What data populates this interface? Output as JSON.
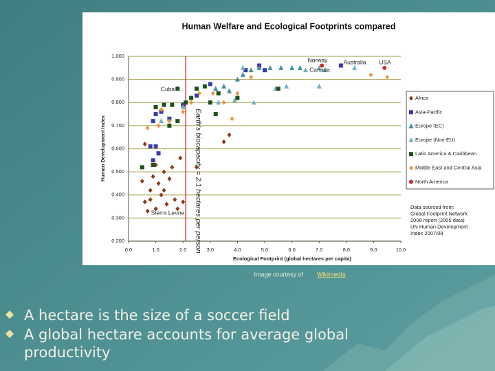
{
  "chart_data": {
    "type": "scatter",
    "title": "Human Welfare and Ecological Footprints compared",
    "x_label": "Ecological Footprint (global hectares per capita)",
    "y_label": "Human Development Index",
    "xlim": [
      0,
      10
    ],
    "ylim": [
      0.2,
      1.0
    ],
    "xticks": [
      {
        "value": 0,
        "label": "0.0"
      },
      {
        "value": 1,
        "label": "1.0"
      },
      {
        "value": 2,
        "label": "2.0"
      },
      {
        "value": 3,
        "label": "3.0"
      },
      {
        "value": 4,
        "label": "4.0"
      },
      {
        "value": 5,
        "label": "5.0"
      },
      {
        "value": 6,
        "label": "6.0"
      },
      {
        "value": 7,
        "label": "7.0"
      },
      {
        "value": 8,
        "label": "8.0"
      },
      {
        "value": 9,
        "label": "9.0"
      },
      {
        "value": 10,
        "label": "10.0"
      }
    ],
    "yticks": [
      {
        "value": 0.2,
        "label": "0.200"
      },
      {
        "value": 0.3,
        "label": "0.300"
      },
      {
        "value": 0.4,
        "label": "0.400"
      },
      {
        "value": 0.5,
        "label": "0.500"
      },
      {
        "value": 0.6,
        "label": "0.600"
      },
      {
        "value": 0.7,
        "label": "0.700"
      },
      {
        "value": 0.8,
        "label": "0.800"
      },
      {
        "value": 0.9,
        "label": "0.900"
      },
      {
        "value": 1.0,
        "label": "1.000"
      }
    ],
    "grid": true,
    "reference_line": 2.1,
    "reference_label": "Earth's biocapacity = 2.1 hectares per person",
    "annotations": [
      "Cuba",
      "Norway",
      "Canada",
      "Australia",
      "USA",
      "Sierra Leone"
    ],
    "source": [
      "Data sourced from:",
      "Global Footprint Network",
      "2008 report (2005 data)",
      "UN Human Development",
      "Index 2007/08"
    ],
    "legend": "right",
    "series": [
      {
        "name": "Africa",
        "color": "#8b3a1a",
        "marker": "diamond",
        "x": [
          0.5,
          0.6,
          0.7,
          0.8,
          0.9,
          1.0,
          1.1,
          1.2,
          1.3,
          1.4,
          1.5,
          1.6,
          1.7,
          1.8,
          1.9,
          2.0,
          0.6,
          1.1,
          1.3,
          0.8,
          3.5,
          3.7,
          2.5,
          1.0
        ],
        "values": [
          0.46,
          0.37,
          0.33,
          0.42,
          0.48,
          0.53,
          0.45,
          0.4,
          0.5,
          0.36,
          0.47,
          0.52,
          0.38,
          0.34,
          0.56,
          0.37,
          0.62,
          0.58,
          0.42,
          0.38,
          0.63,
          0.66,
          0.52,
          0.34
        ]
      },
      {
        "name": "Asia-Pacific",
        "color": "#3b3ba8",
        "marker": "square",
        "x": [
          0.8,
          0.9,
          1.0,
          1.1,
          1.2,
          0.9,
          1.5,
          2.0,
          2.5,
          3.0,
          4.3,
          5.0,
          7.8,
          4.8,
          1.0
        ],
        "values": [
          0.61,
          0.72,
          0.75,
          0.58,
          0.76,
          0.55,
          0.73,
          0.79,
          0.83,
          0.88,
          0.94,
          0.94,
          0.96,
          0.96,
          0.61
        ]
      },
      {
        "name": "Europe (EC)",
        "color": "#3f8f9e",
        "marker": "triangle",
        "x": [
          3.2,
          3.5,
          4.0,
          4.5,
          4.8,
          5.2,
          5.6,
          6.0,
          6.3,
          4.2,
          3.7
        ],
        "values": [
          0.86,
          0.87,
          0.9,
          0.94,
          0.95,
          0.95,
          0.95,
          0.95,
          0.95,
          0.92,
          0.85
        ]
      },
      {
        "name": "Europe (Non-EU)",
        "color": "#6fb3c0",
        "marker": "triangle",
        "x": [
          1.2,
          2.0,
          3.3,
          3.9,
          4.6,
          5.4,
          6.5,
          7.0,
          7.2,
          8.3,
          7.0,
          5.8,
          4.2
        ],
        "values": [
          0.72,
          0.78,
          0.8,
          0.81,
          0.8,
          0.86,
          0.94,
          0.95,
          0.94,
          0.95,
          0.87,
          0.87,
          0.95
        ]
      },
      {
        "name": "Latin America & Caribbean",
        "color": "#1e4f1e",
        "marker": "square",
        "x": [
          0.5,
          1.0,
          1.3,
          1.5,
          1.6,
          1.8,
          1.8,
          2.1,
          2.3,
          2.5,
          2.8,
          3.0,
          3.2,
          3.3,
          4.0,
          5.5,
          0.9
        ],
        "values": [
          0.52,
          0.78,
          0.79,
          0.7,
          0.79,
          0.72,
          0.86,
          0.8,
          0.82,
          0.86,
          0.87,
          0.8,
          0.75,
          0.84,
          0.82,
          0.86,
          0.53
        ]
      },
      {
        "name": "Middle East and Central Asia",
        "color": "#e89a3c",
        "marker": "diamond",
        "x": [
          0.7,
          1.1,
          1.2,
          1.5,
          2.0,
          2.3,
          2.6,
          3.1,
          3.5,
          3.8,
          4.0,
          4.5,
          8.9,
          9.5
        ],
        "values": [
          0.69,
          0.7,
          0.77,
          0.72,
          0.76,
          0.8,
          0.84,
          0.84,
          0.8,
          0.73,
          0.84,
          0.91,
          0.92,
          0.91
        ]
      },
      {
        "name": "North America",
        "color": "#d02828",
        "marker": "circle",
        "x": [
          7.1,
          9.4
        ],
        "values": [
          0.96,
          0.95
        ]
      }
    ]
  },
  "slide": {
    "caption": "Image courtesy of",
    "caption_link": "Wikimedia",
    "bullets": [
      "A hectare is the size of a soccer field",
      "A global hectare accounts for average global productivity"
    ]
  }
}
